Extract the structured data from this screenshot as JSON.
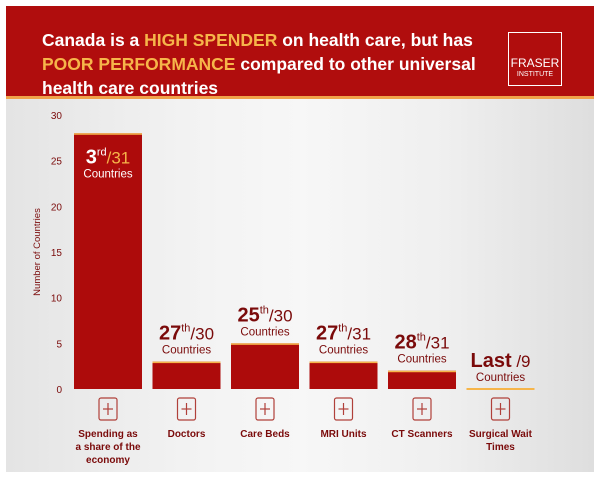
{
  "header": {
    "title_parts": [
      "Canada is a ",
      "HIGH SPENDER",
      " on health care, but has ",
      "POOR PERFORMANCE",
      " compared to other universal health care countries"
    ],
    "logo_line1": "FRASER",
    "logo_line2": "INSTITUTE"
  },
  "colors": {
    "bar": "#ad0b0b",
    "accent": "#f6b54a",
    "header": "#b00d0d",
    "text_dark": "#7a0a0a"
  },
  "chart_data": {
    "type": "bar",
    "ylabel": "Number of Countries",
    "ylim": [
      0,
      30
    ],
    "yticks": [
      0,
      5,
      10,
      15,
      20,
      25,
      30
    ],
    "categories": [
      {
        "label": [
          "Spending as",
          "a share of the",
          "economy"
        ],
        "icon": "receipt-dollar-icon",
        "rank": "3",
        "suffix": "rd",
        "total": "/31",
        "unit": "Countries",
        "highlight": true
      },
      {
        "label": [
          "Doctors"
        ],
        "icon": "doctor-icon",
        "rank": "27",
        "suffix": "th",
        "total": "/30",
        "unit": "Countries"
      },
      {
        "label": [
          "Care Beds"
        ],
        "icon": "hospital-bed-icon",
        "rank": "25",
        "suffix": "th",
        "total": "/30",
        "unit": "Countries"
      },
      {
        "label": [
          "MRI Units"
        ],
        "icon": "mri-machine-icon",
        "rank": "27",
        "suffix": "th",
        "total": "/31",
        "unit": "Countries"
      },
      {
        "label": [
          "CT Scanners"
        ],
        "icon": "ct-scanner-icon",
        "rank": "28",
        "suffix": "th",
        "total": "/31",
        "unit": "Countries"
      },
      {
        "label": [
          "Surgical Wait",
          "Times"
        ],
        "icon": "calendar-plus-icon",
        "rank": "Last",
        "suffix": "",
        "total": "/9",
        "unit": "Countries"
      }
    ],
    "values": [
      28,
      3,
      5,
      3,
      2,
      0
    ]
  }
}
